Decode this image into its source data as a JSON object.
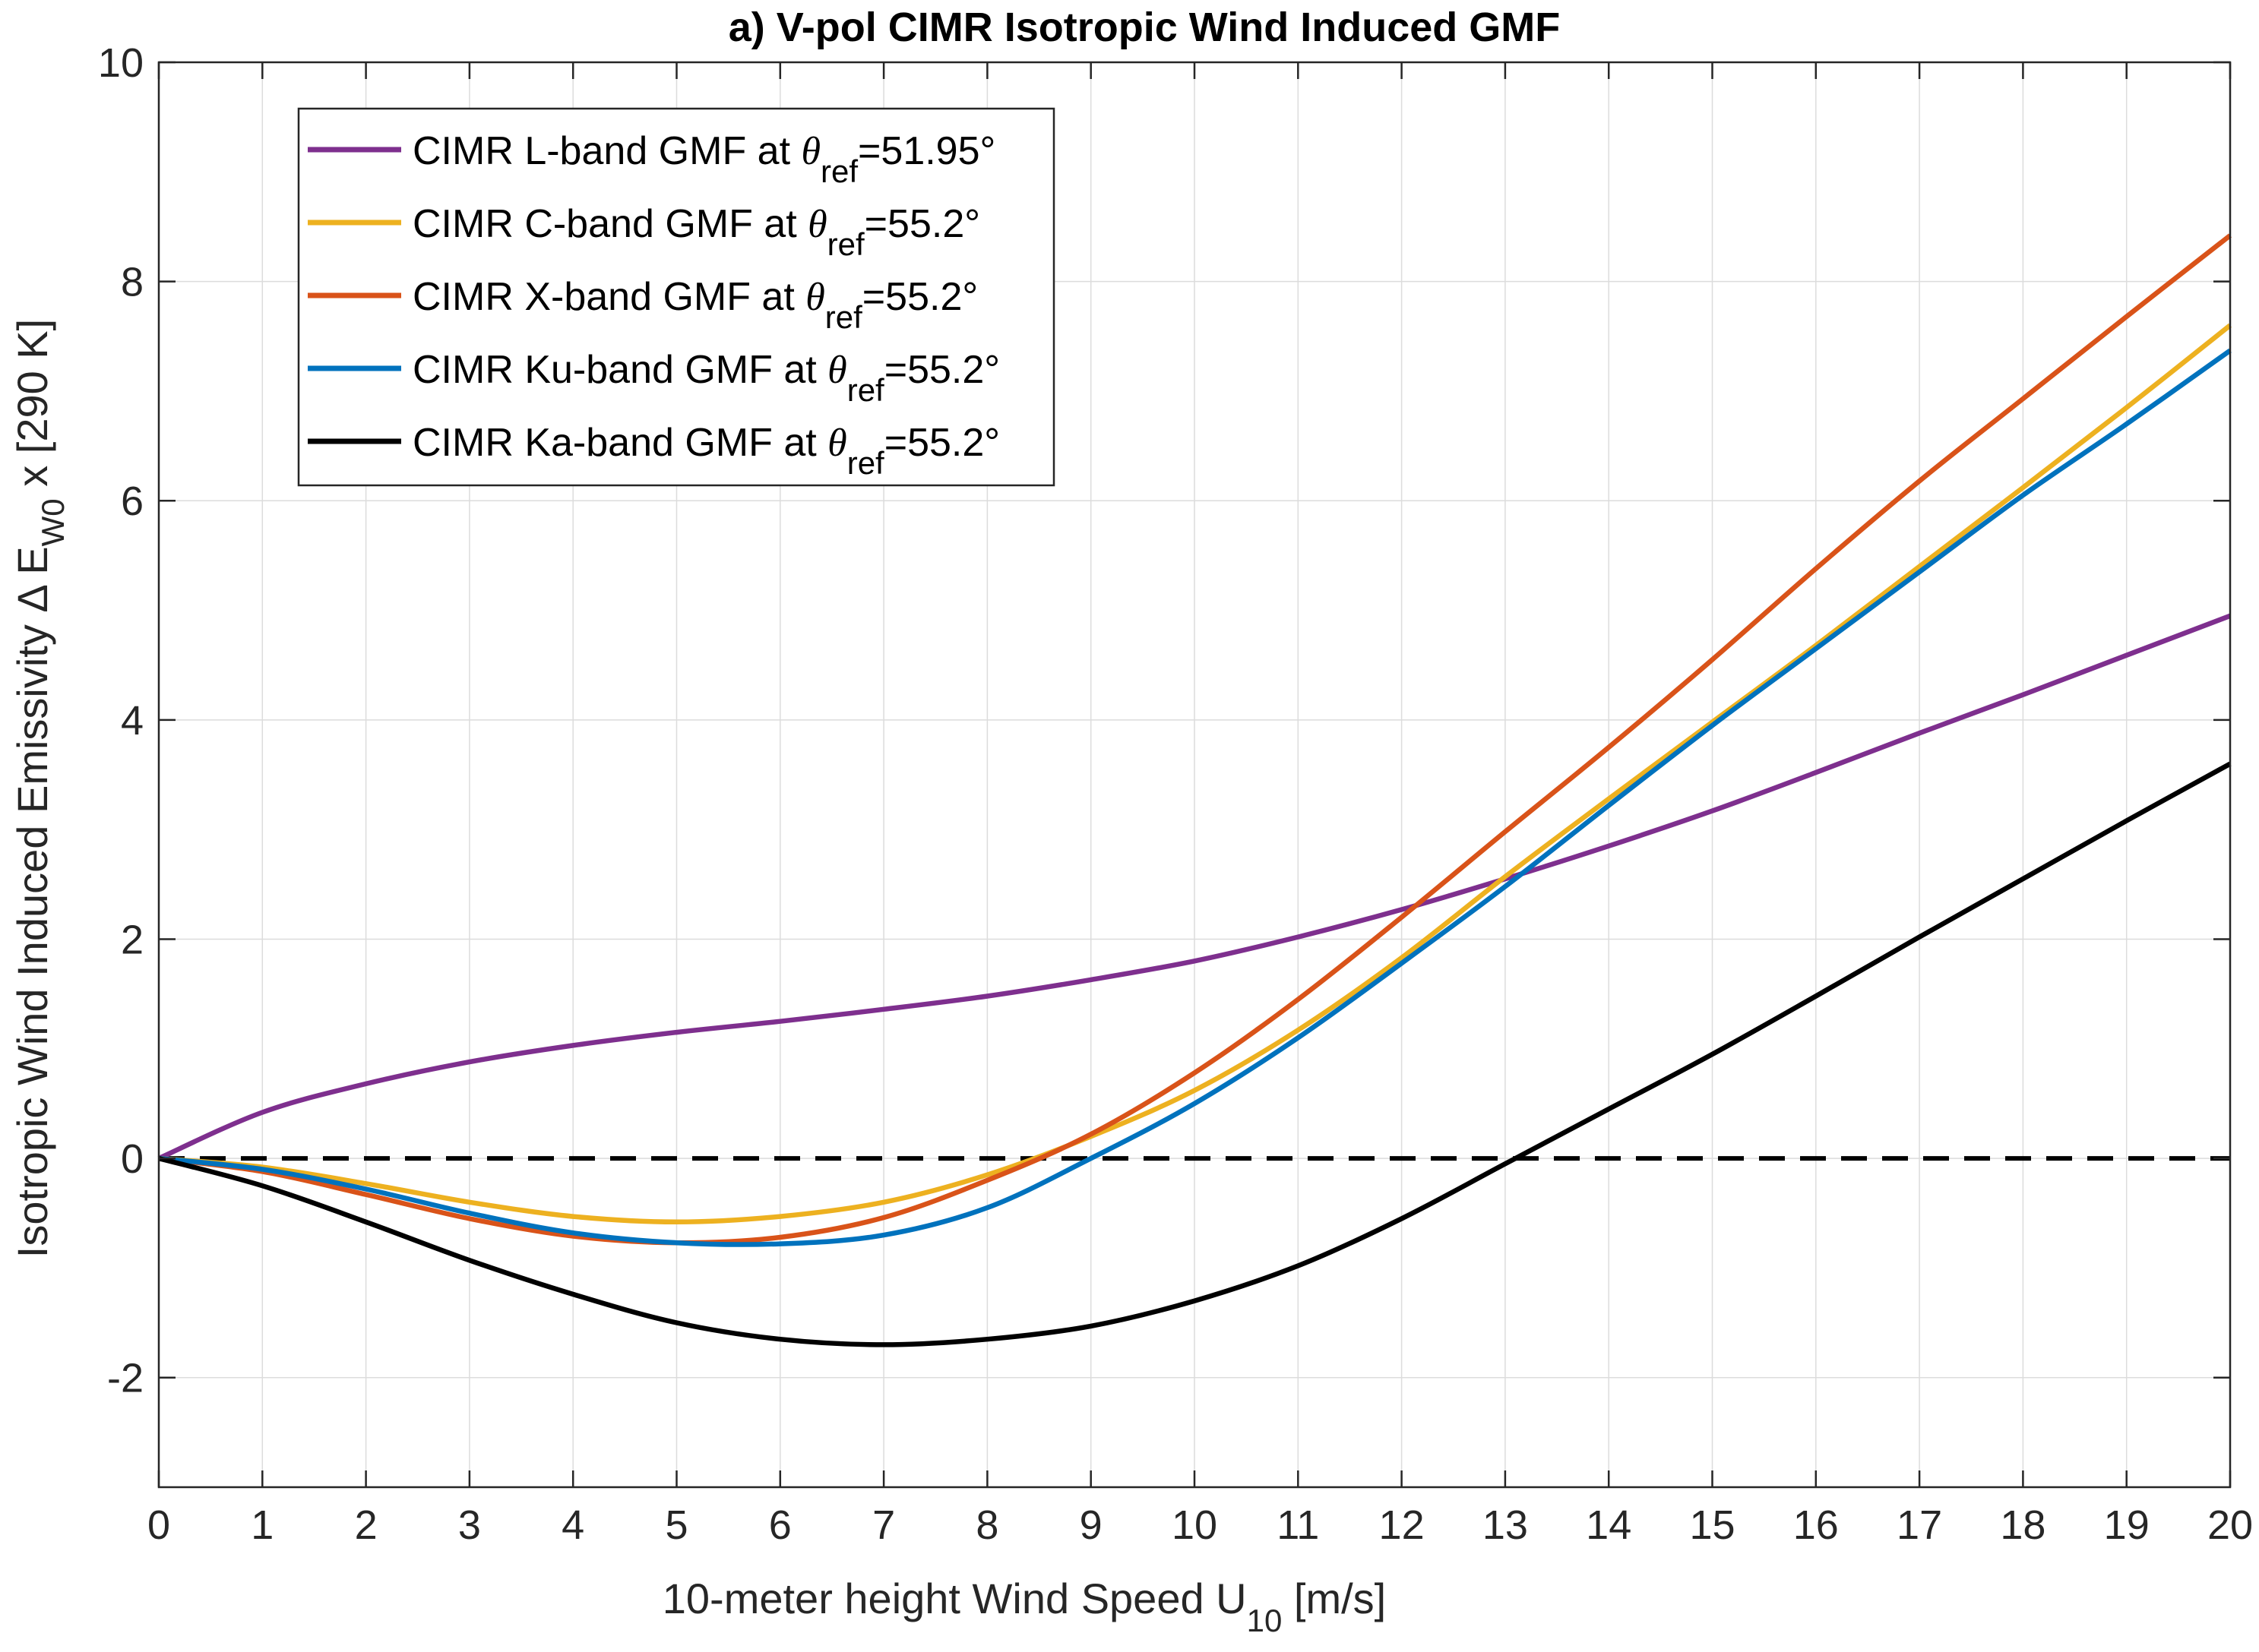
{
  "chart_data": {
    "type": "line",
    "title": "a) V-pol CIMR Isotropic Wind Induced GMF",
    "xlabel": {
      "main": "10-meter height Wind Speed U",
      "sub": "10",
      "tail": " [m/s]"
    },
    "ylabel": {
      "main": "Isotropic Wind Induced Emissivity  Δ E",
      "sub": "W0",
      "tail": " x [290 K]"
    },
    "xlim": [
      0,
      20
    ],
    "ylim": [
      -3,
      10
    ],
    "xticks": [
      "0",
      "1",
      "2",
      "3",
      "4",
      "5",
      "6",
      "7",
      "8",
      "9",
      "10",
      "11",
      "12",
      "13",
      "14",
      "15",
      "16",
      "17",
      "18",
      "19",
      "20"
    ],
    "yticks": [
      "-2",
      "0",
      "2",
      "4",
      "6",
      "8",
      "10"
    ],
    "grid": true,
    "legend_position": "top-left",
    "x": [
      0,
      1,
      2,
      3,
      4,
      5,
      6,
      7,
      8,
      9,
      10,
      11,
      12,
      13,
      14,
      15,
      16,
      17,
      18,
      19,
      20
    ],
    "series": [
      {
        "name": "CIMR L-band GMF at θref=51.95°",
        "legend_prefix": "CIMR L-band GMF at ",
        "legend_sub": "ref",
        "legend_suffix": "=51.95°",
        "color": "#7E2F8E",
        "values": [
          0,
          0.42,
          0.68,
          0.88,
          1.03,
          1.15,
          1.25,
          1.36,
          1.48,
          1.63,
          1.8,
          2.02,
          2.27,
          2.55,
          2.85,
          3.17,
          3.52,
          3.88,
          4.23,
          4.59,
          4.95
        ]
      },
      {
        "name": "CIMR C-band GMF at θref=55.2°",
        "legend_prefix": "CIMR C-band GMF at ",
        "legend_sub": "ref",
        "legend_suffix": "=55.2°",
        "color": "#EDB120",
        "values": [
          0,
          -0.08,
          -0.23,
          -0.4,
          -0.53,
          -0.58,
          -0.53,
          -0.4,
          -0.15,
          0.2,
          0.62,
          1.17,
          1.83,
          2.57,
          3.28,
          3.98,
          4.68,
          5.4,
          6.12,
          6.85,
          7.6
        ]
      },
      {
        "name": "CIMR X-band GMF at θref=55.2°",
        "legend_prefix": "CIMR X-band GMF at ",
        "legend_sub": "ref",
        "legend_suffix": "=55.2°",
        "color": "#D95319",
        "values": [
          0,
          -0.12,
          -0.33,
          -0.55,
          -0.71,
          -0.77,
          -0.72,
          -0.54,
          -0.2,
          0.22,
          0.78,
          1.45,
          2.2,
          2.98,
          3.75,
          4.55,
          5.38,
          6.18,
          6.93,
          7.68,
          8.42
        ]
      },
      {
        "name": "CIMR Ku-band GMF at θref=55.2°",
        "legend_prefix": "CIMR Ku-band GMF at ",
        "legend_sub": "ref",
        "legend_suffix": "=55.2°",
        "color": "#0072BD",
        "values": [
          0,
          -0.1,
          -0.28,
          -0.5,
          -0.68,
          -0.77,
          -0.78,
          -0.7,
          -0.45,
          0.0,
          0.5,
          1.1,
          1.78,
          2.48,
          3.22,
          3.95,
          4.65,
          5.35,
          6.05,
          6.7,
          7.37
        ]
      },
      {
        "name": "CIMR Ka-band GMF at θref=55.2°",
        "legend_prefix": "CIMR Ka-band GMF at ",
        "legend_sub": "ref",
        "legend_suffix": "=55.2°",
        "color": "#000000",
        "values": [
          0,
          -0.25,
          -0.58,
          -0.93,
          -1.24,
          -1.5,
          -1.65,
          -1.7,
          -1.65,
          -1.53,
          -1.3,
          -0.98,
          -0.55,
          -0.05,
          0.45,
          0.95,
          1.48,
          2.02,
          2.55,
          3.08,
          3.6
        ]
      }
    ],
    "reference_line": {
      "y": 0,
      "style": "dashed",
      "color": "#000000"
    }
  }
}
